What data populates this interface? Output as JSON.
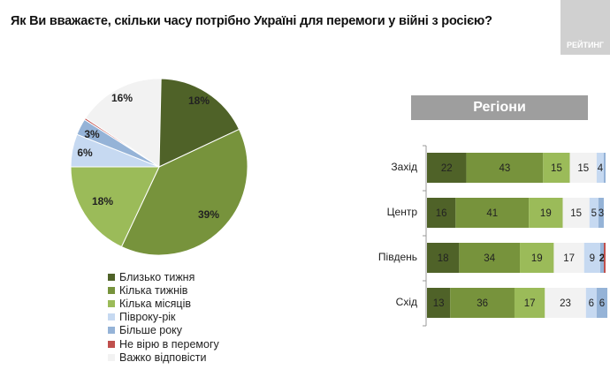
{
  "title": "Як Ви вважаєте, скільки часу потрібно Україні для перемоги у війні з росією?",
  "logo_text": "РЕЙТИНГ",
  "chart_data": [
    {
      "type": "pie",
      "categories": [
        "Близько тижня",
        "Кілька тижнів",
        "Кілька місяців",
        "Півроку-рік",
        "Більше року",
        "Не вірю в перемогу",
        "Важко відповісти"
      ],
      "values": [
        18,
        39,
        18,
        6,
        3,
        0,
        16
      ],
      "labels": [
        "18%",
        "39%",
        "18%",
        "6%",
        "3%",
        "0%",
        "16%"
      ],
      "colors": [
        "#4f6228",
        "#77933c",
        "#9bbb59",
        "#c6d9f1",
        "#95b3d7",
        "#c0504d",
        "#f2f2f2"
      ],
      "legend": "bottom"
    },
    {
      "type": "bar",
      "orientation": "horizontal-stacked",
      "title": "Регіони",
      "categories": [
        "Захід",
        "Центр",
        "Південь",
        "Схід"
      ],
      "series": [
        {
          "name": "Близько тижня",
          "color": "#4f6228",
          "values": [
            22,
            16,
            18,
            13
          ]
        },
        {
          "name": "Кілька тижнів",
          "color": "#77933c",
          "values": [
            43,
            41,
            34,
            36
          ]
        },
        {
          "name": "Кілька місяців",
          "color": "#9bbb59",
          "values": [
            15,
            19,
            19,
            17
          ]
        },
        {
          "name": "Важко відповісти",
          "color": "#f2f2f2",
          "values": [
            15,
            15,
            17,
            23
          ]
        },
        {
          "name": "Півроку-рік",
          "color": "#c6d9f1",
          "values": [
            4,
            5,
            9,
            6
          ]
        },
        {
          "name": "Більше року",
          "color": "#95b3d7",
          "values": [
            1,
            3,
            2,
            6
          ]
        },
        {
          "name": "Не вірю в перемогу",
          "color": "#c0504d",
          "values": [
            0,
            0,
            1,
            0
          ]
        }
      ],
      "xlim": [
        0,
        100
      ]
    }
  ]
}
